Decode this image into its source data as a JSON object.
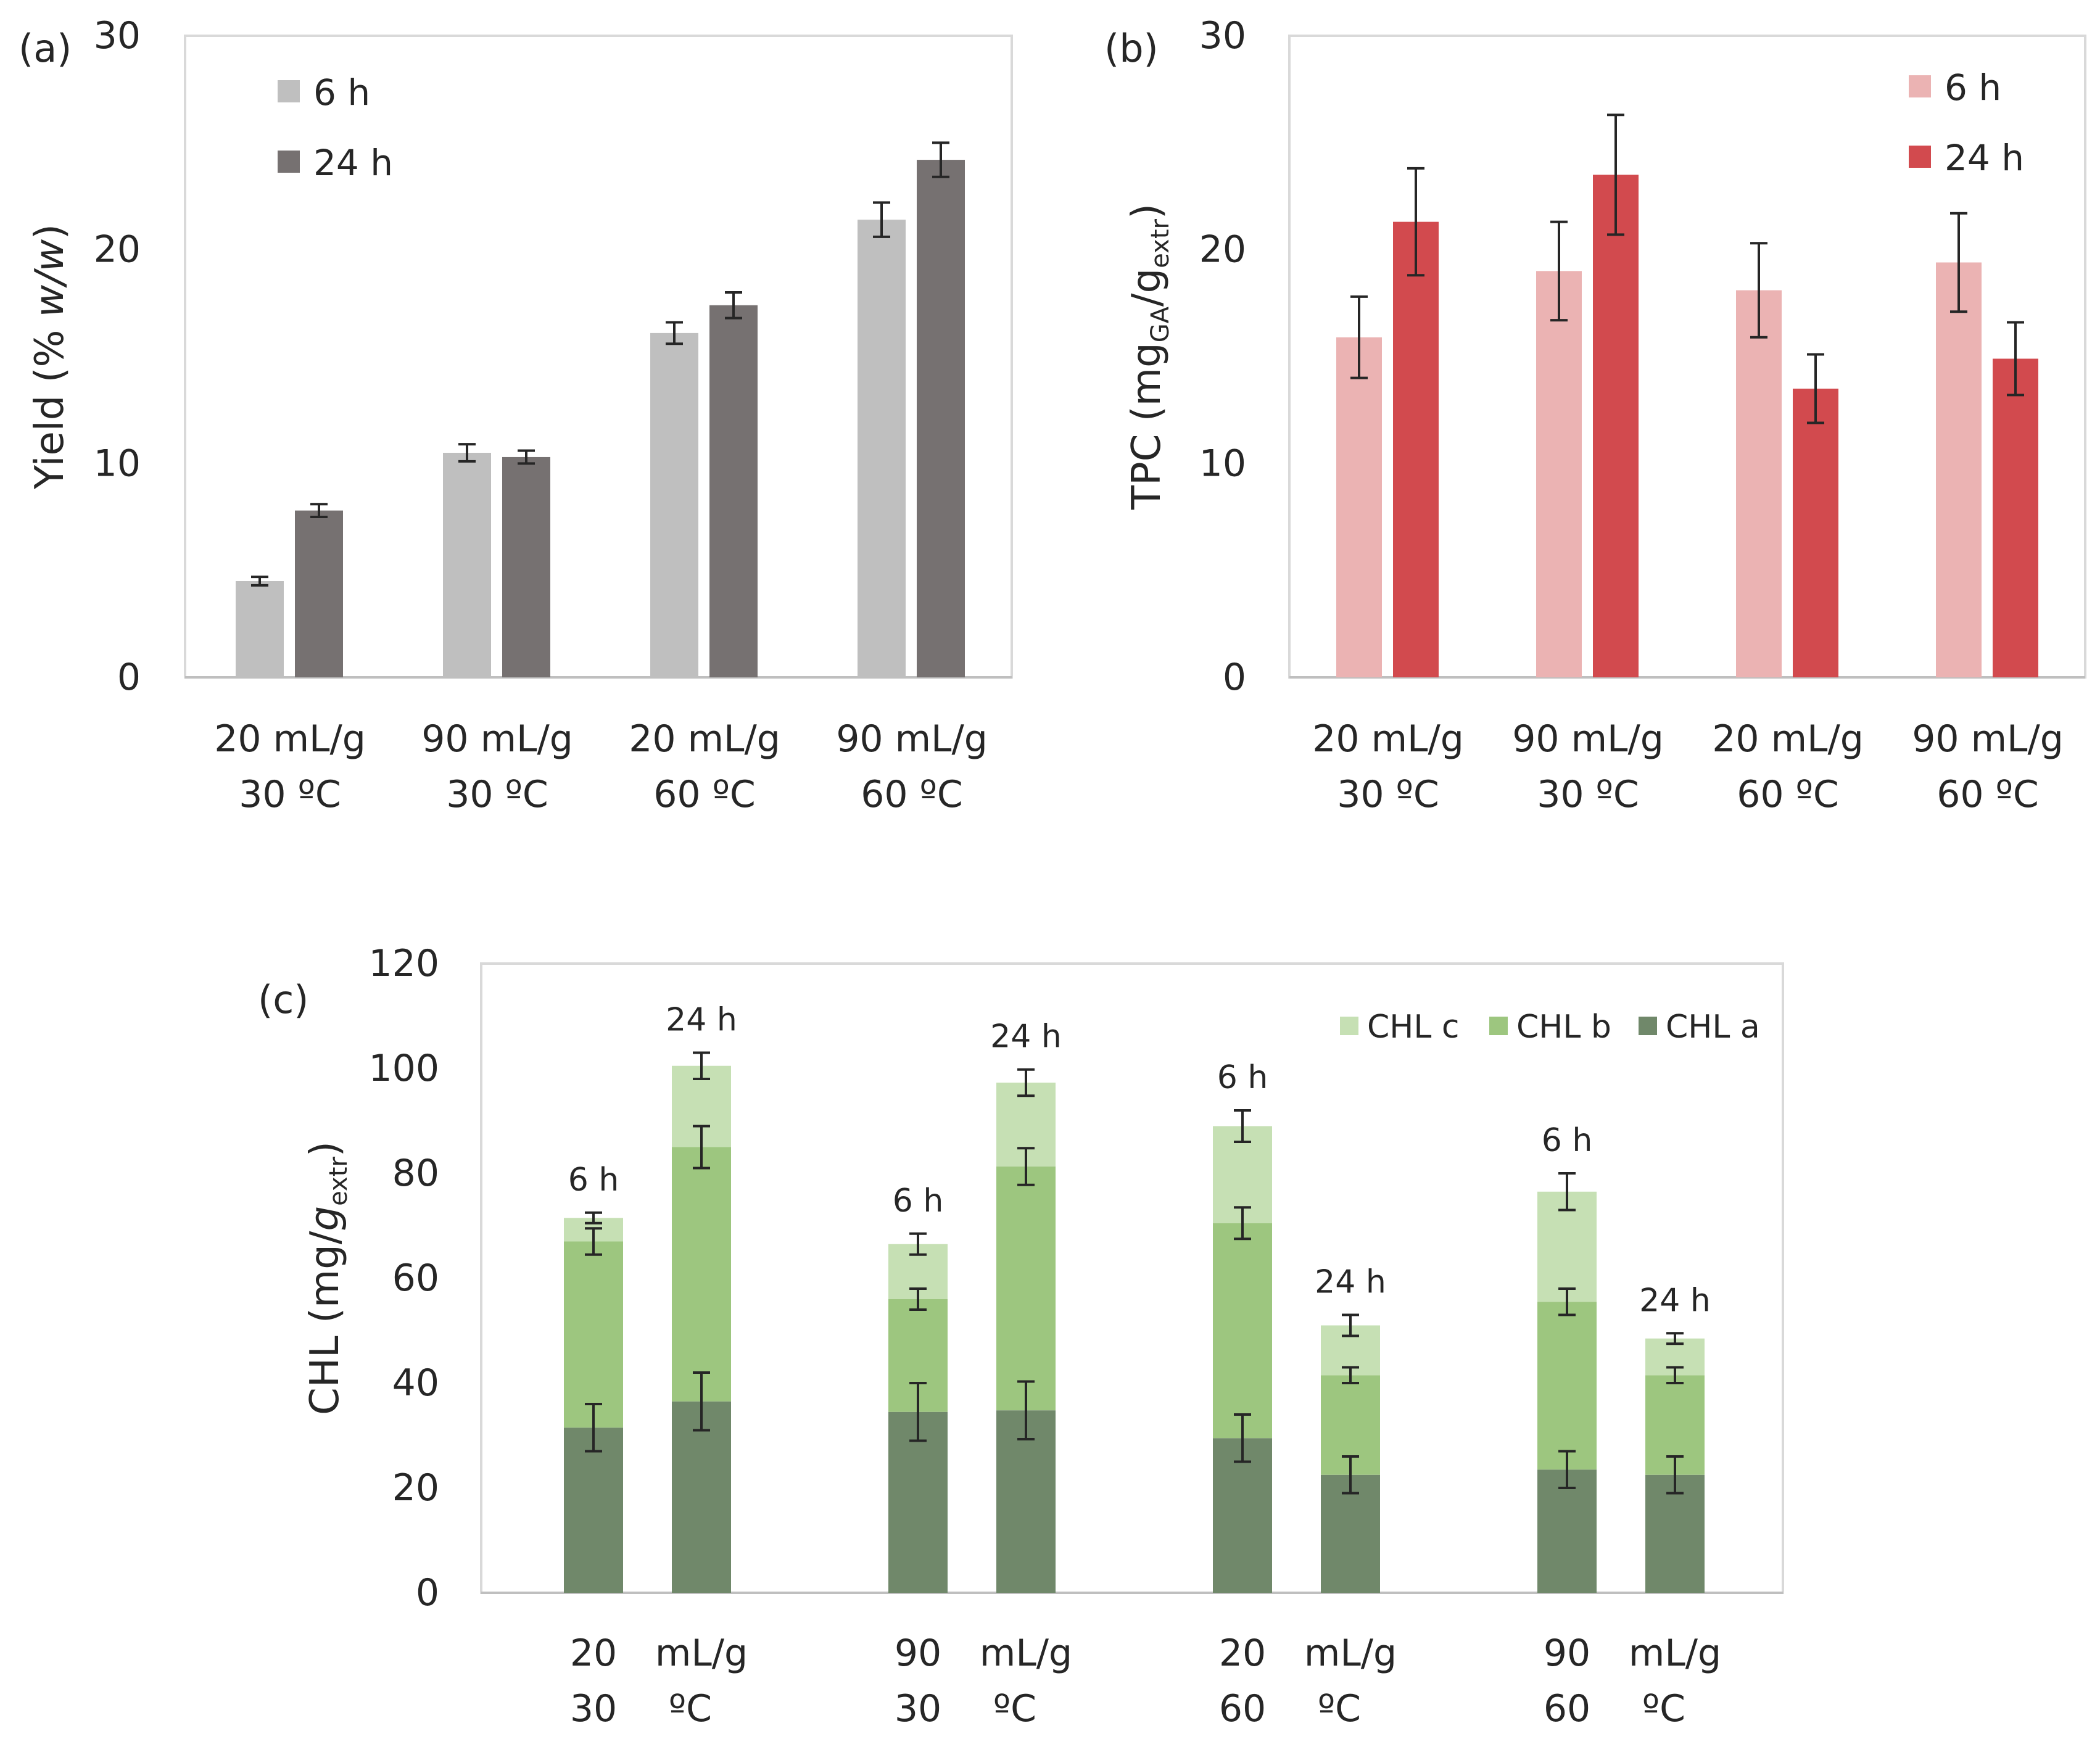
{
  "chart_data": [
    {
      "panel": "(a)",
      "type": "bar",
      "ylabel": "Yield (% w/w)",
      "ylabel_parts": {
        "main": "Yield (% ",
        "italic": "w/w",
        "end": ")"
      },
      "ylim": [
        0,
        30
      ],
      "yticks": [
        "0",
        "10",
        "20",
        "30"
      ],
      "categories": [
        {
          "line1": "20 mL/g",
          "line2": "30 ºC"
        },
        {
          "line1": "90 mL/g",
          "line2": "30 ºC"
        },
        {
          "line1": "20 mL/g",
          "line2": "60 ºC"
        },
        {
          "line1": "90 mL/g",
          "line2": "60 ºC"
        }
      ],
      "series": [
        {
          "name": "6 h",
          "color": "#bfbfbf",
          "values": [
            4.5,
            10.5,
            16.1,
            21.4
          ],
          "errors": [
            0.2,
            0.4,
            0.5,
            0.8
          ]
        },
        {
          "name": "24 h",
          "color": "#767171",
          "values": [
            7.8,
            10.3,
            17.4,
            24.2
          ],
          "errors": [
            0.3,
            0.3,
            0.6,
            0.8
          ]
        }
      ],
      "legend_position": "top-left"
    },
    {
      "panel": "(b)",
      "type": "bar",
      "ylabel": "TPC (mgGA/gextr)",
      "ylabel_parts": {
        "pre": "TPC (mg",
        "sub1": "GA",
        "mid": "/g",
        "sub2": "extr",
        "end": ")"
      },
      "ylim": [
        0,
        30
      ],
      "yticks": [
        "0",
        "10",
        "20",
        "30"
      ],
      "categories": [
        {
          "line1": "20 mL/g",
          "line2": "30 ºC"
        },
        {
          "line1": "90 mL/g",
          "line2": "30 ºC"
        },
        {
          "line1": "20 mL/g",
          "line2": "60 ºC"
        },
        {
          "line1": "90 mL/g",
          "line2": "60 ºC"
        }
      ],
      "series": [
        {
          "name": "6 h",
          "color": "#ebb3b3",
          "values": [
            15.9,
            19.0,
            18.1,
            19.4
          ],
          "errors": [
            1.9,
            2.3,
            2.2,
            2.3
          ]
        },
        {
          "name": "24 h",
          "color": "#d24a4e",
          "values": [
            21.3,
            23.5,
            13.5,
            14.9
          ],
          "errors": [
            2.5,
            2.8,
            1.6,
            1.7
          ]
        }
      ],
      "legend_position": "top-right"
    },
    {
      "panel": "(c)",
      "type": "bar",
      "stacked": true,
      "ylabel": "CHL (mg/gextr)",
      "ylabel_parts": {
        "pre": "CHL (mg/",
        "italic": "g",
        "sub": "extr",
        "end": ")"
      },
      "ylim": [
        0,
        120
      ],
      "yticks": [
        "0",
        "20",
        "40",
        "60",
        "80",
        "100",
        "120"
      ],
      "groups": [
        {
          "line1": [
            "20",
            "mL/g"
          ],
          "line2": [
            "30",
            "ºC"
          ]
        },
        {
          "line1": [
            "90",
            "mL/g"
          ],
          "line2": [
            "30",
            "ºC"
          ]
        },
        {
          "line1": [
            "20",
            "mL/g"
          ],
          "line2": [
            "60",
            "ºC"
          ]
        },
        {
          "line1": [
            "90",
            "mL/g"
          ],
          "line2": [
            "60",
            "ºC"
          ]
        }
      ],
      "bar_labels": [
        "6 h",
        "24 h",
        "6 h",
        "24 h",
        "6 h",
        "24 h",
        "6 h",
        "24 h"
      ],
      "series": [
        {
          "name": "CHL a",
          "color": "#70886a",
          "values": [
            31.5,
            36.5,
            34.5,
            34.8,
            29.5,
            22.5,
            23.5,
            22.5
          ],
          "errors": [
            4.5,
            5.5,
            5.5,
            5.5,
            4.5,
            3.5,
            3.5,
            3.5
          ]
        },
        {
          "name": "CHL b",
          "color": "#9dc67f",
          "values": [
            35.5,
            48.5,
            21.5,
            46.5,
            41.0,
            19.0,
            32.0,
            19.0
          ],
          "errors": [
            2.5,
            4.0,
            2.0,
            3.5,
            3.0,
            1.5,
            2.5,
            1.5
          ]
        },
        {
          "name": "CHL c",
          "color": "#c6e0b4",
          "values": [
            4.5,
            15.5,
            10.5,
            16.0,
            18.5,
            9.5,
            21.0,
            7.0
          ],
          "errors": [
            1.0,
            2.5,
            2.0,
            2.5,
            3.0,
            2.0,
            3.5,
            1.0
          ]
        }
      ],
      "legend_order": [
        "CHL c",
        "CHL b",
        "CHL a"
      ],
      "legend_position": "top-right"
    }
  ]
}
